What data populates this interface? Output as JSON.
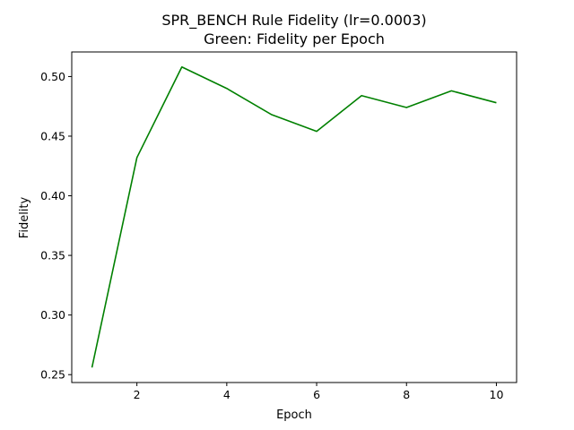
{
  "chart_data": {
    "type": "line",
    "title": "SPR_BENCH Rule Fidelity (lr=0.0003)",
    "subtitle": "Green: Fidelity per Epoch",
    "xlabel": "Epoch",
    "ylabel": "Fidelity",
    "xlim": [
      0.55,
      10.45
    ],
    "ylim": [
      0.2434,
      0.5206
    ],
    "x_ticks": [
      2,
      4,
      6,
      8,
      10
    ],
    "y_ticks": [
      0.25,
      0.3,
      0.35,
      0.4,
      0.45,
      0.5
    ],
    "x_tick_labels": [
      "2",
      "4",
      "6",
      "8",
      "10"
    ],
    "y_tick_labels": [
      "0.25",
      "0.30",
      "0.35",
      "0.40",
      "0.45",
      "0.50"
    ],
    "grid": false,
    "legend": false,
    "series": [
      {
        "color": "#008000",
        "x": [
          1,
          2,
          3,
          4,
          5,
          6,
          7,
          8,
          9,
          10
        ],
        "y": [
          0.256,
          0.432,
          0.508,
          0.49,
          0.468,
          0.454,
          0.484,
          0.474,
          0.488,
          0.478
        ]
      }
    ]
  }
}
